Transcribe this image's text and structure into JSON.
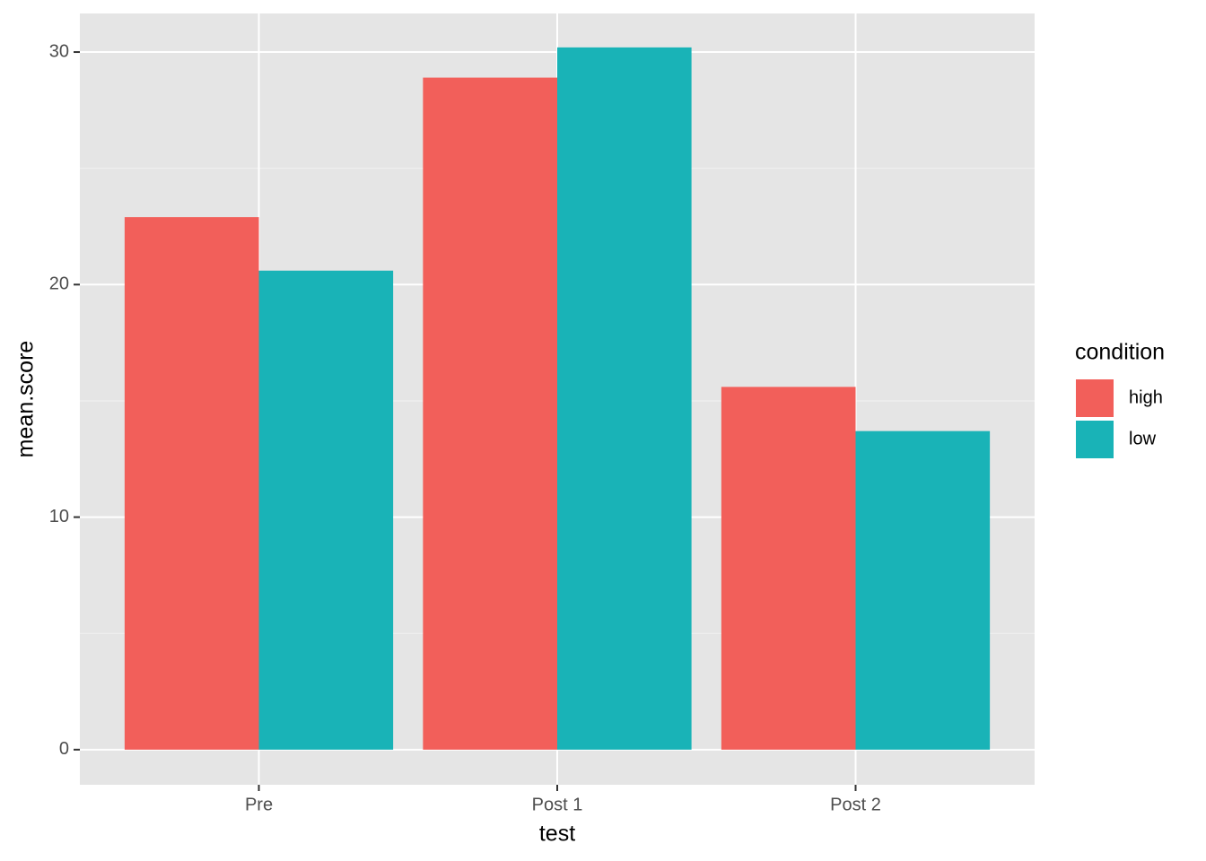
{
  "chart_data": {
    "type": "bar",
    "x_label": "test",
    "y_label": "mean.score",
    "categories": [
      "Pre",
      "Post 1",
      "Post 2"
    ],
    "series": [
      {
        "name": "high",
        "color": "#f25f5a",
        "values": [
          22.9,
          28.9,
          15.6
        ]
      },
      {
        "name": "low",
        "color": "#19b3b7",
        "values": [
          20.6,
          30.2,
          13.7
        ]
      }
    ],
    "legend_title": "condition",
    "legend_position": "right",
    "ylim": [
      -1.51,
      31.66
    ],
    "yticks": [
      0,
      10,
      20,
      30
    ],
    "grid": true
  }
}
